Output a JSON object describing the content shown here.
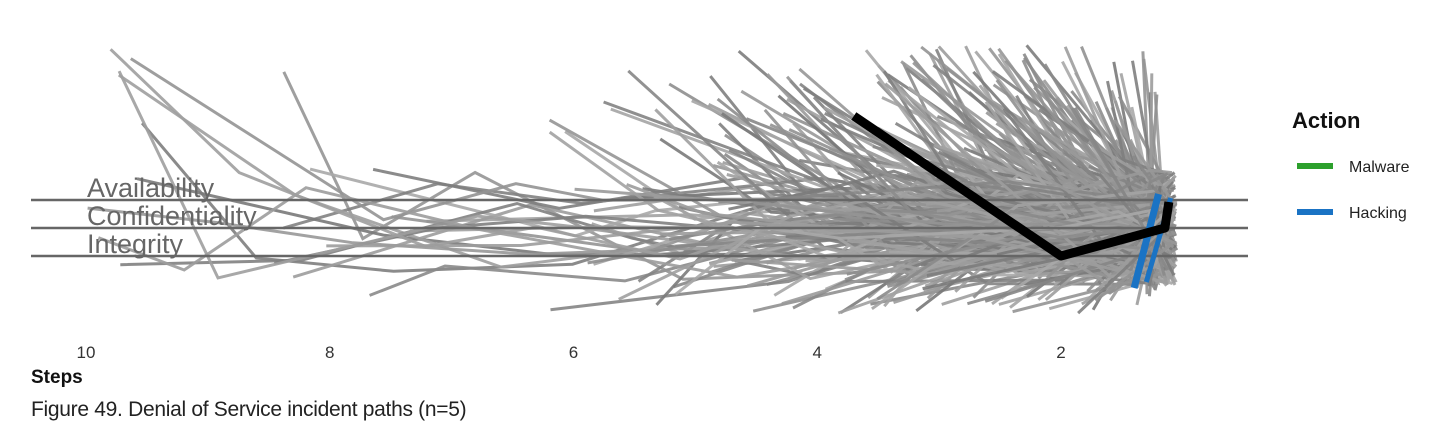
{
  "chart_data": {
    "type": "line",
    "x_axis": {
      "label": "Steps",
      "ticks": [
        10,
        8,
        6,
        4,
        2
      ],
      "direction": "reversed",
      "range": [
        10.5,
        0.5
      ]
    },
    "y_categories": [
      "Availability",
      "Confidentiality",
      "Integrity"
    ],
    "legend": {
      "title": "Action",
      "placement": "right",
      "entries": [
        {
          "label": "Malware",
          "color": "#2ca02c"
        },
        {
          "label": "Hacking",
          "color": "#1a73c4"
        }
      ]
    },
    "highlighted_path": {
      "color": "#000000",
      "points": [
        [
          3.7,
          "Availability"
        ],
        [
          2.0,
          "Integrity"
        ],
        [
          1.0,
          "Confidentiality"
        ],
        [
          1.0,
          "Availability"
        ]
      ]
    },
    "background_paths": {
      "color": "#888888",
      "count": 500,
      "note_visible": false
    }
  },
  "caption": "Figure 49. Denial of Service incident paths (n=5)"
}
